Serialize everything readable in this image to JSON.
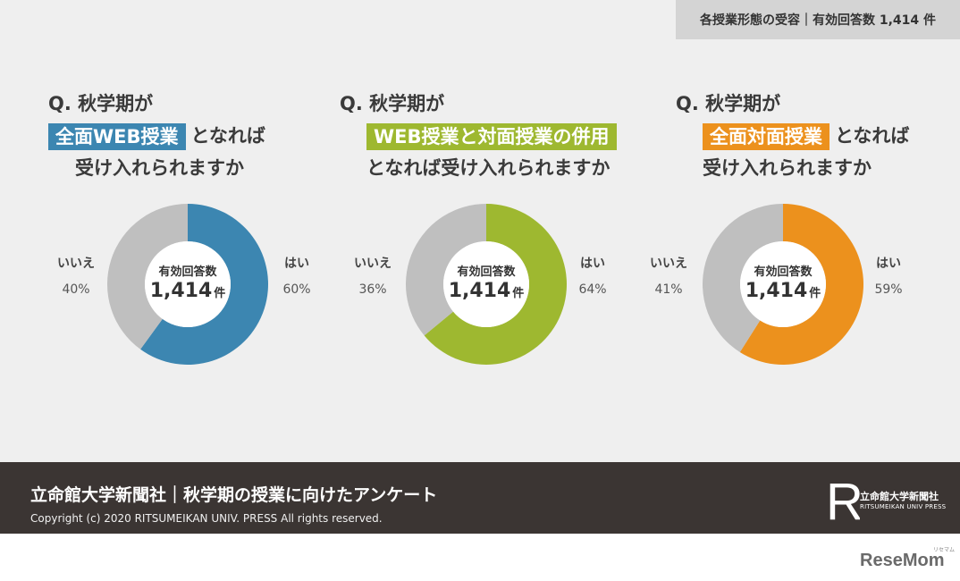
{
  "header": {
    "badge": "各授業形態の受容｜有効回答数 1,414 件"
  },
  "charts": [
    {
      "q_prefix": "Q. 秋学期が",
      "highlight": "全面WEB授業",
      "suffix_same_line": "となれば",
      "line3": "受け入れられますか",
      "center_label": "有効回答数",
      "center_value": "1,414",
      "center_unit": "件",
      "yes_label": "はい",
      "yes_pct": "60%",
      "no_label": "いいえ",
      "no_pct": "40%"
    },
    {
      "q_prefix": "Q. 秋学期が",
      "highlight": "WEB授業と対面授業の併用",
      "suffix_same_line": "",
      "line3": "となれば受け入れられますか",
      "center_label": "有効回答数",
      "center_value": "1,414",
      "center_unit": "件",
      "yes_label": "はい",
      "yes_pct": "64%",
      "no_label": "いいえ",
      "no_pct": "36%"
    },
    {
      "q_prefix": "Q. 秋学期が",
      "highlight": "全面対面授業",
      "suffix_same_line": "となれば",
      "line3": "受け入れられますか",
      "center_label": "有効回答数",
      "center_value": "1,414",
      "center_unit": "件",
      "yes_label": "はい",
      "yes_pct": "59%",
      "no_label": "いいえ",
      "no_pct": "41%"
    }
  ],
  "chart_data": [
    {
      "type": "pie",
      "categories": [
        "はい",
        "いいえ"
      ],
      "values": [
        60,
        40
      ],
      "colors": [
        "#3c86b1",
        "#bfbfbf"
      ]
    },
    {
      "type": "pie",
      "categories": [
        "はい",
        "いいえ"
      ],
      "values": [
        64,
        36
      ],
      "colors": [
        "#9eb830",
        "#bfbfbf"
      ]
    },
    {
      "type": "pie",
      "categories": [
        "はい",
        "いいえ"
      ],
      "values": [
        59,
        41
      ],
      "colors": [
        "#ec911d",
        "#bfbfbf"
      ]
    }
  ],
  "colors": {
    "blue": "#3c86b1",
    "green": "#9eb830",
    "orange": "#ec911d",
    "gray": "#bfbfbf",
    "footer": "#3b3533"
  },
  "footer": {
    "title": "立命館大学新聞社｜秋学期の授業に向けたアンケート",
    "copyright": "Copyright (c) 2020  RITSUMEIKAN UNIV. PRESS  All rights reserved.",
    "logo_mark": "R",
    "logo_name": "立命館大学新聞社",
    "logo_sub": "RITSUMEIKAN UNIV PRESS"
  },
  "watermark": {
    "brand": "ReseMom",
    "ruby": "リセマム"
  }
}
